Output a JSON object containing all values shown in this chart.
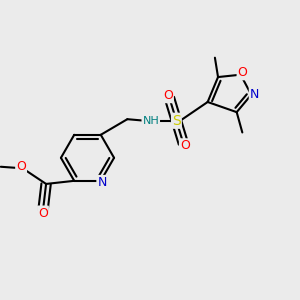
{
  "bg_color": "#ebebeb",
  "figsize": [
    3.0,
    3.0
  ],
  "dpi": 100,
  "bond_color": "#000000",
  "bond_lw": 1.5,
  "atom_colors": {
    "N": "#0000cc",
    "O": "#ff0000",
    "S": "#cccc00",
    "NH_color": "#008080"
  },
  "font_size": 8.5
}
